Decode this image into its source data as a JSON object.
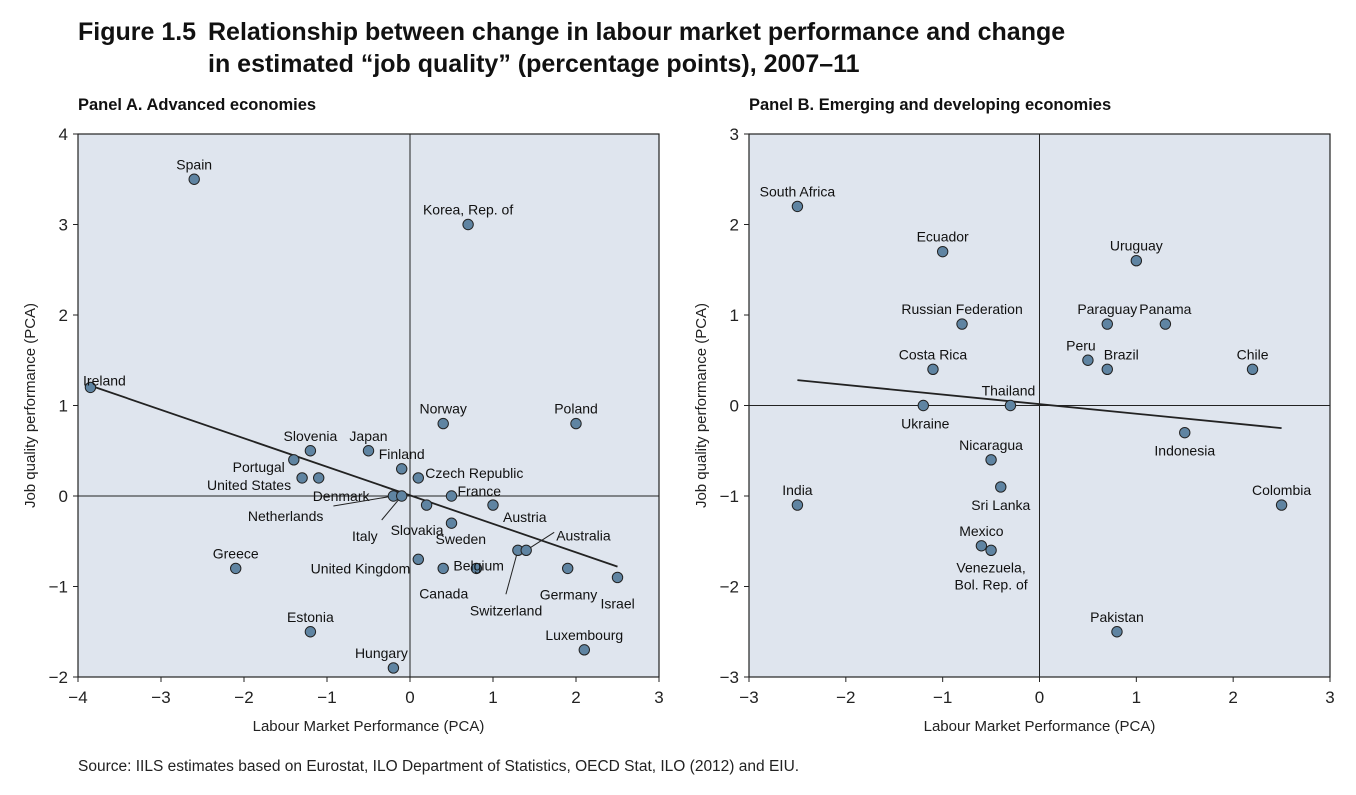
{
  "figure": {
    "number": "Figure 1.5",
    "title_line1": "Relationship between change in labour market performance and change",
    "title_line2": "in estimated “job quality” (percentage points), 2007–11",
    "source": "Source: IILS estimates based on Eurostat, ILO Department of Statistics, OECD Stat, ILO (2012) and EIU."
  },
  "colors": {
    "plot_bg": "#dfe5ee",
    "marker": "#5f84a2",
    "line": "#222222"
  },
  "chart_data": [
    {
      "type": "scatter",
      "title": "Panel A. Advanced economies",
      "xlabel": "Labour Market Performance (PCA)",
      "ylabel": "Job quality performance (PCA)",
      "xlim": [
        -4,
        3
      ],
      "ylim": [
        -2,
        4
      ],
      "xticks": [
        -4,
        -3,
        -2,
        -1,
        0,
        1,
        2,
        3
      ],
      "yticks": [
        -2,
        -1,
        0,
        1,
        2,
        3,
        4
      ],
      "tick_labels_x": [
        "−4",
        "−3",
        "−2",
        "−1",
        "0",
        "1",
        "2",
        "3"
      ],
      "tick_labels_y": [
        "−2",
        "−1",
        "0",
        "1",
        "2",
        "3",
        "4"
      ],
      "trend_line": [
        [
          -3.85,
          1.22
        ],
        [
          2.5,
          -0.78
        ]
      ],
      "points": [
        {
          "label": "Spain",
          "x": -2.6,
          "y": 3.5
        },
        {
          "label": "Korea, Rep. of",
          "x": 0.7,
          "y": 3.0
        },
        {
          "label": "Ireland",
          "x": -3.85,
          "y": 1.2
        },
        {
          "label": "Norway",
          "x": 0.4,
          "y": 0.8
        },
        {
          "label": "Poland",
          "x": 2.0,
          "y": 0.8
        },
        {
          "label": "Slovenia",
          "x": -1.2,
          "y": 0.5
        },
        {
          "label": "Japan",
          "x": -0.5,
          "y": 0.5
        },
        {
          "label": "Portugal",
          "x": -1.4,
          "y": 0.4
        },
        {
          "label": "Finland",
          "x": -0.1,
          "y": 0.3
        },
        {
          "label": "United States",
          "x": -1.3,
          "y": 0.2
        },
        {
          "label": "Denmark",
          "x": -1.1,
          "y": 0.2
        },
        {
          "label": "Czech Republic",
          "x": 0.1,
          "y": 0.2
        },
        {
          "label": "France",
          "x": 0.5,
          "y": 0.0
        },
        {
          "label": "Netherlands",
          "x": -0.2,
          "y": 0.0
        },
        {
          "label": "Italy",
          "x": -0.1,
          "y": 0.0
        },
        {
          "label": "Austria",
          "x": 1.0,
          "y": -0.1
        },
        {
          "label": "Slovakia",
          "x": 0.2,
          "y": -0.1
        },
        {
          "label": "Sweden",
          "x": 0.5,
          "y": -0.3
        },
        {
          "label": "Switzerland",
          "x": 1.3,
          "y": -0.6
        },
        {
          "label": "Australia",
          "x": 1.4,
          "y": -0.6
        },
        {
          "label": "United Kingdom",
          "x": 0.1,
          "y": -0.7
        },
        {
          "label": "Belgium",
          "x": 0.8,
          "y": -0.8
        },
        {
          "label": "Canada",
          "x": 0.4,
          "y": -0.8
        },
        {
          "label": "Germany",
          "x": 1.9,
          "y": -0.8
        },
        {
          "label": "Israel",
          "x": 2.5,
          "y": -0.9
        },
        {
          "label": "Greece",
          "x": -2.1,
          "y": -0.8
        },
        {
          "label": "Estonia",
          "x": -1.2,
          "y": -1.5
        },
        {
          "label": "Luxembourg",
          "x": 2.1,
          "y": -1.7
        },
        {
          "label": "Hungary",
          "x": -0.2,
          "y": -1.9
        }
      ]
    },
    {
      "type": "scatter",
      "title": "Panel B. Emerging and developing economies",
      "xlabel": "Labour Market Performance (PCA)",
      "ylabel": "Job quality performance (PCA)",
      "xlim": [
        -3,
        3
      ],
      "ylim": [
        -3,
        3
      ],
      "xticks": [
        -3,
        -2,
        -1,
        0,
        1,
        2,
        3
      ],
      "yticks": [
        -3,
        -2,
        -1,
        0,
        1,
        2,
        3
      ],
      "tick_labels_x": [
        "−3",
        "−2",
        "−1",
        "0",
        "1",
        "2",
        "3"
      ],
      "tick_labels_y": [
        "−3",
        "−2",
        "−1",
        "0",
        "1",
        "2",
        "3"
      ],
      "trend_line": [
        [
          -2.5,
          0.28
        ],
        [
          2.5,
          -0.25
        ]
      ],
      "points": [
        {
          "label": "South Africa",
          "x": -2.5,
          "y": 2.2
        },
        {
          "label": "Ecuador",
          "x": -1.0,
          "y": 1.7
        },
        {
          "label": "Uruguay",
          "x": 1.0,
          "y": 1.6
        },
        {
          "label": "Russian Federation",
          "x": -0.8,
          "y": 0.9
        },
        {
          "label": "Paraguay",
          "x": 0.7,
          "y": 0.9
        },
        {
          "label": "Panama",
          "x": 1.3,
          "y": 0.9
        },
        {
          "label": "Peru",
          "x": 0.5,
          "y": 0.5
        },
        {
          "label": "Brazil",
          "x": 0.7,
          "y": 0.4
        },
        {
          "label": "Costa Rica",
          "x": -1.1,
          "y": 0.4
        },
        {
          "label": "Chile",
          "x": 2.2,
          "y": 0.4
        },
        {
          "label": "Ukraine",
          "x": -1.2,
          "y": 0.0
        },
        {
          "label": "Thailand",
          "x": -0.3,
          "y": 0.0
        },
        {
          "label": "Indonesia",
          "x": 1.5,
          "y": -0.3
        },
        {
          "label": "Nicaragua",
          "x": -0.5,
          "y": -0.6
        },
        {
          "label": "Sri Lanka",
          "x": -0.4,
          "y": -0.9
        },
        {
          "label": "India",
          "x": -2.5,
          "y": -1.1
        },
        {
          "label": "Colombia",
          "x": 2.5,
          "y": -1.1
        },
        {
          "label": "Mexico",
          "x": -0.6,
          "y": -1.55
        },
        {
          "label": "Venezuela, Bol. Rep. of",
          "x": -0.5,
          "y": -1.6
        },
        {
          "label": "Pakistan",
          "x": 0.8,
          "y": -2.5
        }
      ]
    }
  ]
}
